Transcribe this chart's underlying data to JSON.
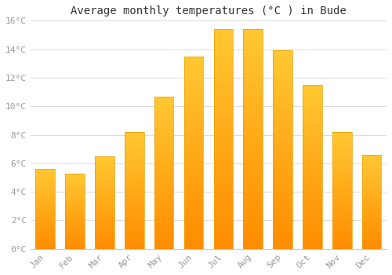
{
  "months": [
    "Jan",
    "Feb",
    "Mar",
    "Apr",
    "May",
    "Jun",
    "Jul",
    "Aug",
    "Sep",
    "Oct",
    "Nov",
    "Dec"
  ],
  "temperatures": [
    5.6,
    5.3,
    6.5,
    8.2,
    10.7,
    13.5,
    15.4,
    15.4,
    13.9,
    11.5,
    8.2,
    6.6
  ],
  "bar_color_top": "#FFB800",
  "bar_color_bottom": "#FF8C00",
  "bar_edge_color": "#E8A000",
  "background_color": "#FFFFFF",
  "plot_bg_color": "#FFFFFF",
  "grid_color": "#DDDDDD",
  "title": "Average monthly temperatures (°C ) in Bude",
  "title_fontsize": 10,
  "ylim": [
    0,
    16
  ],
  "yticks": [
    0,
    2,
    4,
    6,
    8,
    10,
    12,
    14,
    16
  ],
  "ytick_labels": [
    "0°C",
    "2°C",
    "4°C",
    "6°C",
    "8°C",
    "10°C",
    "12°C",
    "14°C",
    "16°C"
  ],
  "tick_color": "#999999",
  "tick_fontsize": 8,
  "spine_color": "#CCCCCC",
  "bar_width": 0.65
}
